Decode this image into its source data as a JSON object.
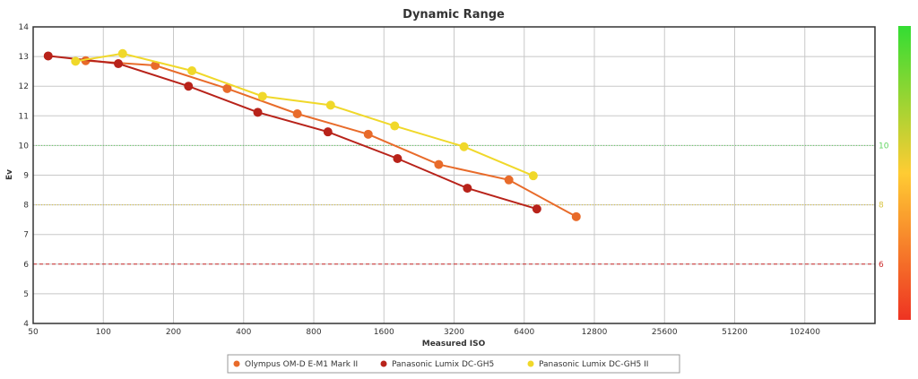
{
  "chart_data": {
    "type": "line",
    "title": "Dynamic Range",
    "xlabel": "Measured ISO",
    "ylabel": "Ev",
    "x_scale": "log2",
    "x_ticks": [
      50,
      100,
      200,
      400,
      800,
      1600,
      3200,
      6400,
      12800,
      25600,
      51200,
      102400
    ],
    "y_ticks": [
      4,
      5,
      6,
      7,
      8,
      9,
      10,
      11,
      12,
      13,
      14
    ],
    "xlim": [
      50,
      204800
    ],
    "ylim": [
      4,
      14
    ],
    "grid": true,
    "legend_position": "bottom",
    "series": [
      {
        "name": "Olympus OM-D E-M1 Mark II",
        "color": "#e86b2a",
        "points": [
          [
            84,
            12.86
          ],
          [
            167,
            12.7
          ],
          [
            340,
            11.92
          ],
          [
            680,
            11.07
          ],
          [
            1370,
            10.38
          ],
          [
            2750,
            9.36
          ],
          [
            5500,
            8.84
          ],
          [
            10700,
            7.6
          ]
        ]
      },
      {
        "name": "Panasonic Lumix DC-GH5",
        "color": "#b8231a",
        "points": [
          [
            58,
            13.02
          ],
          [
            116,
            12.76
          ],
          [
            232,
            12.0
          ],
          [
            460,
            11.12
          ],
          [
            920,
            10.46
          ],
          [
            1830,
            9.56
          ],
          [
            3650,
            8.56
          ],
          [
            7250,
            7.86
          ]
        ]
      },
      {
        "name": "Panasonic Lumix DC-GH5 II",
        "color": "#f0d82a",
        "points": [
          [
            76,
            12.84
          ],
          [
            121,
            13.1
          ],
          [
            240,
            12.52
          ],
          [
            482,
            11.66
          ],
          [
            945,
            11.36
          ],
          [
            1780,
            10.66
          ],
          [
            3530,
            9.96
          ],
          [
            7000,
            8.98
          ]
        ]
      }
    ],
    "reference_lines": [
      {
        "value": 10,
        "label": "10",
        "color": "#5fd45f",
        "style": "dotted"
      },
      {
        "value": 8,
        "label": "8",
        "color": "#d8c440",
        "style": "dotted"
      },
      {
        "value": 6,
        "label": "6",
        "color": "#cc2a2a",
        "style": "dashed"
      }
    ],
    "color_scale": {
      "top_color": "#33dd33",
      "middle_color": "#ffcc33",
      "bottom_color": "#ee3322"
    }
  }
}
